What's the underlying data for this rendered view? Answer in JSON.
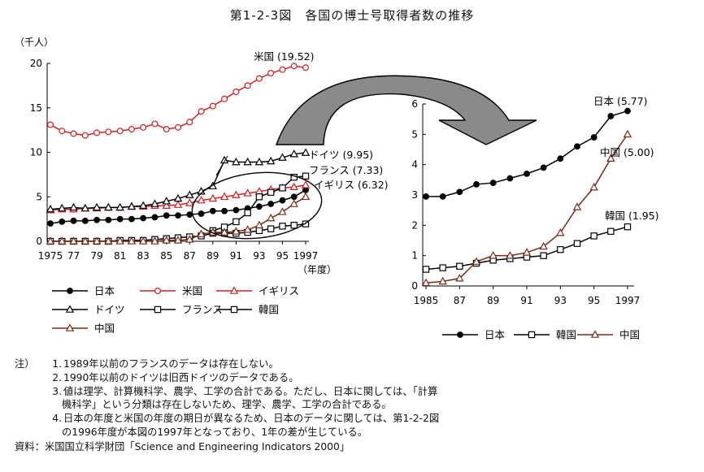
{
  "title": "第1-2-3図　各国の博士号取得者数の推移",
  "chart_data": [
    {
      "type": "line",
      "unit": "（千人）",
      "xlabel_suffix": "（年度）",
      "x_ticks": [
        "1975",
        "77",
        "79",
        "81",
        "83",
        "85",
        "87",
        "89",
        "91",
        "93",
        "95",
        "1997"
      ],
      "y_ticks": [
        "0",
        "5",
        "10",
        "15",
        "20"
      ],
      "ylim": [
        0,
        20
      ],
      "xlim": [
        1975,
        1997
      ],
      "series": [
        {
          "name": "日本",
          "marker": "dot",
          "color": "#000000",
          "label": "",
          "x": [
            1975,
            1976,
            1977,
            1978,
            1979,
            1980,
            1981,
            1982,
            1983,
            1984,
            1985,
            1986,
            1987,
            1988,
            1989,
            1990,
            1991,
            1992,
            1993,
            1994,
            1995,
            1996,
            1997
          ],
          "y": [
            2.0,
            2.2,
            2.3,
            2.3,
            2.4,
            2.4,
            2.5,
            2.5,
            2.6,
            2.7,
            2.9,
            2.9,
            3.0,
            3.1,
            3.4,
            3.4,
            3.5,
            3.7,
            3.9,
            4.2,
            4.6,
            5.0,
            5.77
          ]
        },
        {
          "name": "米国",
          "marker": "circle",
          "color": "#d42020",
          "label": "米国 (19.52)",
          "x": [
            1975,
            1976,
            1977,
            1978,
            1979,
            1980,
            1981,
            1982,
            1983,
            1984,
            1985,
            1986,
            1987,
            1988,
            1989,
            1990,
            1991,
            1992,
            1993,
            1994,
            1995,
            1996,
            1997
          ],
          "y": [
            13.1,
            12.4,
            12.1,
            11.9,
            12.2,
            12.3,
            12.4,
            12.6,
            12.8,
            13.2,
            12.6,
            12.8,
            13.4,
            14.6,
            15.2,
            16.0,
            16.8,
            17.5,
            18.3,
            18.9,
            19.3,
            19.7,
            19.52
          ]
        },
        {
          "name": "イギリス",
          "marker": "triangle",
          "color": "#d42020",
          "label": "イギリス (6.32)",
          "x": [
            1975,
            1976,
            1977,
            1978,
            1979,
            1980,
            1981,
            1982,
            1983,
            1984,
            1985,
            1986,
            1987,
            1988,
            1989,
            1990,
            1991,
            1992,
            1993,
            1994,
            1995,
            1996,
            1997
          ],
          "y": [
            3.5,
            3.6,
            3.6,
            3.7,
            3.7,
            3.8,
            3.8,
            3.9,
            3.9,
            4.0,
            4.0,
            4.1,
            4.3,
            4.6,
            4.8,
            5.0,
            5.2,
            5.4,
            5.6,
            5.8,
            6.0,
            6.1,
            6.32
          ]
        },
        {
          "name": "ドイツ",
          "marker": "triangle",
          "color": "#000000",
          "label": "ドイツ (9.95)",
          "x": [
            1975,
            1976,
            1977,
            1978,
            1979,
            1980,
            1981,
            1982,
            1983,
            1984,
            1985,
            1986,
            1987,
            1988,
            1989,
            1990,
            1991,
            1992,
            1993,
            1994,
            1995,
            1996,
            1997
          ],
          "y": [
            3.6,
            3.7,
            3.8,
            3.7,
            3.8,
            3.8,
            3.8,
            3.9,
            4.0,
            4.2,
            4.5,
            4.8,
            5.2,
            5.6,
            6.2,
            9.1,
            8.9,
            8.9,
            8.9,
            9.0,
            9.4,
            9.8,
            9.95
          ]
        },
        {
          "name": "フランス",
          "marker": "square",
          "color": "#000000",
          "label": "フランス (7.33)",
          "x": [
            1989,
            1990,
            1991,
            1992,
            1993,
            1994,
            1995,
            1996,
            1997
          ],
          "y": [
            1.2,
            1.6,
            2.2,
            3.2,
            5.0,
            5.5,
            6.0,
            7.2,
            7.33
          ]
        },
        {
          "name": "韓国",
          "marker": "square",
          "color": "#000000",
          "label": "",
          "x": [
            1975,
            1976,
            1977,
            1978,
            1979,
            1980,
            1981,
            1982,
            1983,
            1984,
            1985,
            1986,
            1987,
            1988,
            1989,
            1990,
            1991,
            1992,
            1993,
            1994,
            1995,
            1996,
            1997
          ],
          "y": [
            0.0,
            0.0,
            0.0,
            0.0,
            0.0,
            0.0,
            0.1,
            0.1,
            0.1,
            0.2,
            0.3,
            0.4,
            0.5,
            0.6,
            0.9,
            0.9,
            0.9,
            1.0,
            1.2,
            1.4,
            1.7,
            1.8,
            1.95
          ]
        },
        {
          "name": "中国",
          "marker": "triangle",
          "color": "#7a2a18",
          "label": "",
          "x": [
            1975,
            1976,
            1977,
            1978,
            1979,
            1980,
            1981,
            1982,
            1983,
            1984,
            1985,
            1986,
            1987,
            1988,
            1989,
            1990,
            1991,
            1992,
            1993,
            1994,
            1995,
            1996,
            1997
          ],
          "y": [
            0.0,
            0.0,
            0.0,
            0.0,
            0.0,
            0.0,
            0.0,
            0.0,
            0.0,
            0.0,
            0.1,
            0.1,
            0.2,
            0.8,
            1.0,
            1.0,
            1.1,
            1.3,
            1.8,
            2.6,
            3.3,
            4.2,
            5.0
          ]
        }
      ],
      "legend": [
        "日本",
        "米国",
        "イギリス",
        "ドイツ",
        "フランス",
        "韓国",
        "中国"
      ]
    },
    {
      "type": "line",
      "x_ticks": [
        "1985",
        "87",
        "89",
        "91",
        "93",
        "95",
        "1997"
      ],
      "y_ticks": [
        "0",
        "1",
        "2",
        "3",
        "4",
        "5",
        "6"
      ],
      "ylim": [
        0,
        6
      ],
      "xlim": [
        1985,
        1997
      ],
      "series": [
        {
          "name": "日本",
          "marker": "dot",
          "color": "#000000",
          "label": "日本 (5.77)",
          "x": [
            1985,
            1986,
            1987,
            1988,
            1989,
            1990,
            1991,
            1992,
            1993,
            1994,
            1995,
            1996,
            1997
          ],
          "y": [
            2.95,
            2.95,
            3.1,
            3.35,
            3.4,
            3.55,
            3.7,
            3.9,
            4.2,
            4.6,
            4.9,
            5.6,
            5.77
          ]
        },
        {
          "name": "韓国",
          "marker": "square",
          "color": "#000000",
          "label": "韓国 (1.95)",
          "x": [
            1985,
            1986,
            1987,
            1988,
            1989,
            1990,
            1991,
            1992,
            1993,
            1994,
            1995,
            1996,
            1997
          ],
          "y": [
            0.55,
            0.6,
            0.65,
            0.75,
            0.85,
            0.9,
            0.95,
            1.0,
            1.2,
            1.4,
            1.65,
            1.8,
            1.95
          ]
        },
        {
          "name": "中国",
          "marker": "triangle",
          "color": "#7a2a18",
          "label": "中国 (5.00)",
          "x": [
            1985,
            1986,
            1987,
            1988,
            1989,
            1990,
            1991,
            1992,
            1993,
            1994,
            1995,
            1996,
            1997
          ],
          "y": [
            0.1,
            0.15,
            0.25,
            0.8,
            1.0,
            1.0,
            1.1,
            1.3,
            1.75,
            2.6,
            3.25,
            4.2,
            5.0
          ]
        }
      ],
      "legend": [
        "日本",
        "韓国",
        "中国"
      ]
    }
  ],
  "notes": {
    "label": "注）",
    "items": [
      {
        "num": "1.",
        "text": "1989年以前のフランスのデータは存在しない。"
      },
      {
        "num": "2.",
        "text": "1990年以前のドイツは旧西ドイツのデータである。"
      },
      {
        "num": "3.",
        "text": "値は理学、計算機科学、農学、工学の合計である。ただし、日本に関しては、「計算",
        "cont": "機科学」という分類は存在しないため、理学、農学、工学の合計である。"
      },
      {
        "num": "4.",
        "text": "日本の年度と米国の年度の期日が異なるため、日本のデータに関しては、第1-2-2図",
        "cont": "の1996年度が本図の1997年となっており、1年の差が生じている。"
      }
    ]
  },
  "source": "資料：米国国立科学財団「Science and Engineering Indicators 2000」"
}
